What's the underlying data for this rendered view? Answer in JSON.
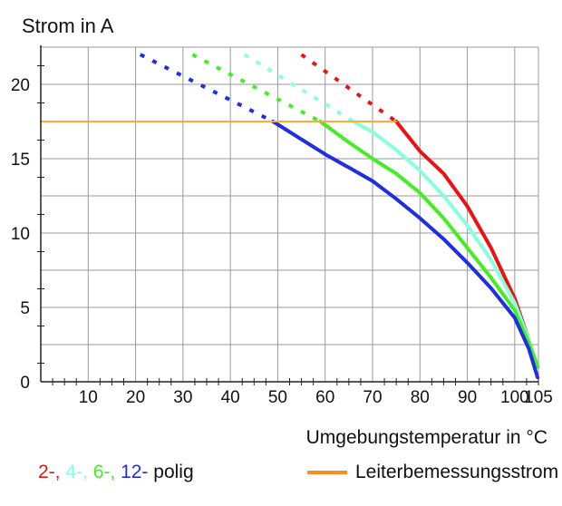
{
  "chart_data": {
    "type": "line",
    "ylabel": "Strom in A",
    "xlabel": "Umgebungstemperatur in °C",
    "xlim": [
      0,
      105
    ],
    "ylim": [
      0,
      22.5
    ],
    "x_ticks": [
      10,
      20,
      30,
      40,
      50,
      60,
      70,
      80,
      90,
      100,
      105
    ],
    "y_ticks": [
      0,
      5,
      10,
      15,
      20
    ],
    "x_grid": [
      0,
      10,
      20,
      30,
      40,
      50,
      60,
      70,
      80,
      90,
      100,
      105
    ],
    "y_grid": [
      0,
      2.5,
      5,
      7.5,
      10,
      12.5,
      15,
      17.5,
      20,
      22.5
    ],
    "grid": true,
    "series": [
      {
        "color": "#ee1111",
        "x": [
          55,
          75
        ],
        "y": [
          22,
          17.5
        ],
        "style": "dashed"
      },
      {
        "color": "#ee1111",
        "x": [
          75,
          80,
          85,
          90,
          95,
          100,
          103,
          104.8
        ],
        "y": [
          17.5,
          15.5,
          14.0,
          11.8,
          9.0,
          5.6,
          2.8,
          1.0
        ],
        "style": "solid"
      },
      {
        "color": "#88ffdd",
        "x": [
          43,
          66
        ],
        "y": [
          22,
          17.5
        ],
        "style": "dashed"
      },
      {
        "color": "#88ffdd",
        "x": [
          66,
          70,
          75,
          80,
          85,
          90,
          95,
          100,
          103,
          104.8
        ],
        "y": [
          17.5,
          16.8,
          15.6,
          14.2,
          12.5,
          10.5,
          8.2,
          5.3,
          2.8,
          1.0
        ],
        "style": "solid"
      },
      {
        "color": "#44ee22",
        "x": [
          32,
          59
        ],
        "y": [
          22,
          17.5
        ],
        "style": "dashed"
      },
      {
        "color": "#44ee22",
        "x": [
          59,
          65,
          70,
          75,
          80,
          85,
          90,
          95,
          100,
          103,
          104.8
        ],
        "y": [
          17.5,
          16.1,
          15.0,
          14.0,
          12.7,
          11.0,
          9.0,
          7.0,
          4.8,
          2.6,
          1.0
        ],
        "style": "solid"
      },
      {
        "color": "#1e2ee0",
        "x": [
          21,
          49
        ],
        "y": [
          22,
          17.5
        ],
        "style": "dashed"
      },
      {
        "color": "#1e2ee0",
        "x": [
          49,
          55,
          60,
          65,
          70,
          75,
          80,
          85,
          90,
          95,
          100,
          103,
          104.8
        ],
        "y": [
          17.5,
          16.3,
          15.3,
          14.4,
          13.5,
          12.3,
          11.0,
          9.6,
          8.0,
          6.3,
          4.3,
          2.2,
          0.3
        ],
        "style": "solid"
      },
      {
        "name": "Leiterbemessungsstrom",
        "color": "#ffaa33",
        "x": [
          0,
          75
        ],
        "y": [
          17.5,
          17.5
        ],
        "style": "solid"
      }
    ],
    "legend": {
      "poles": [
        {
          "text": "2-,",
          "color": "#ee1111"
        },
        {
          "text": "4-,",
          "color": "#88ffdd"
        },
        {
          "text": "6-,",
          "color": "#44ee22"
        },
        {
          "text": "12-",
          "color": "#1e2ee0"
        }
      ],
      "poles_suffix": "polig",
      "rated_current_label": "Leiterbemessungsstrom",
      "rated_current_color": "#ff8c1a"
    }
  }
}
